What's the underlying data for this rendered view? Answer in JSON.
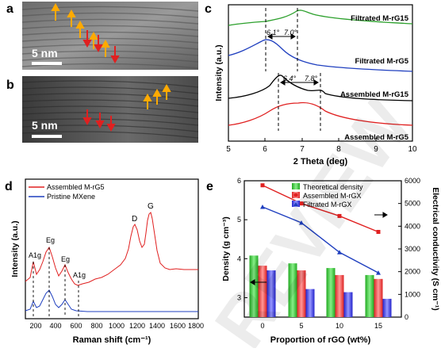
{
  "panels": {
    "a": {
      "letter": "a",
      "scale": "5 nm"
    },
    "b": {
      "letter": "b",
      "scale": "5 nm"
    },
    "c": {
      "letter": "c"
    },
    "d": {
      "letter": "d"
    },
    "e": {
      "letter": "e"
    }
  },
  "watermark": "REVIEW",
  "chart_data": [
    {
      "panel": "c",
      "type": "line",
      "xlabel": "2 Theta (deg)",
      "ylabel": "Intensity (a.u.)",
      "xlim": [
        5,
        10
      ],
      "xticks": [
        "5",
        "6",
        "7",
        "8",
        "9",
        "10"
      ],
      "series": [
        {
          "name": "Filtrated M-rG15",
          "color": "#2ca02c"
        },
        {
          "name": "Filtrated M-rG5",
          "color": "#1f3fbf"
        },
        {
          "name": "Assembled M-rG15",
          "color": "#000000"
        },
        {
          "name": "Assembled M-rG5",
          "color": "#e02020"
        }
      ],
      "annotations": [
        "6.1°",
        "7.0°",
        "6.4°",
        "7.8°"
      ]
    },
    {
      "panel": "d",
      "type": "line",
      "xlabel": "Raman shift (cm⁻¹)",
      "ylabel": "Intensity (a.u.)",
      "xlim": [
        100,
        1800
      ],
      "xticks": [
        "200",
        "400",
        "600",
        "800",
        "1000",
        "1200",
        "1400",
        "1600",
        "1800"
      ],
      "series": [
        {
          "name": "Assembled M-rG5",
          "color": "#e02020"
        },
        {
          "name": "Pristine MXene",
          "color": "#1f3fbf"
        }
      ],
      "annotations": [
        "A1g",
        "Eg",
        "Eg",
        "A1g",
        "D",
        "G"
      ]
    },
    {
      "panel": "e",
      "type": "bar",
      "xlabel": "Proportion of rGO (wt%)",
      "ylabel": "Density (g cm⁻³)",
      "y2label": "Electrical conductivity (S cm⁻¹)",
      "categories": [
        "0",
        "5",
        "10",
        "15"
      ],
      "ylim": [
        2.5,
        6
      ],
      "yticks": [
        "3",
        "4",
        "5",
        "6"
      ],
      "y2lim": [
        0,
        6000
      ],
      "y2ticks": [
        "0",
        "1000",
        "2000",
        "3000",
        "4000",
        "5000",
        "6000"
      ],
      "series": [
        {
          "name": "Theoretical density",
          "color": "#33cc33",
          "values": [
            4.08,
            3.88,
            3.76,
            3.58
          ]
        },
        {
          "name": "Assembled M-rGX",
          "color": "#ff3333",
          "values": [
            3.82,
            3.7,
            3.58,
            3.48
          ]
        },
        {
          "name": "Filtrated M-rGX",
          "color": "#3333ff",
          "values": [
            3.7,
            3.22,
            3.14,
            2.97
          ]
        }
      ],
      "lines": [
        {
          "name": "Assembled M-rGX",
          "axis": "y2",
          "values": [
            5800,
            5000,
            4450,
            3750
          ]
        },
        {
          "name": "Filtrated M-rGX",
          "axis": "y2",
          "values": [
            4850,
            4150,
            2850,
            1950
          ]
        }
      ]
    }
  ]
}
